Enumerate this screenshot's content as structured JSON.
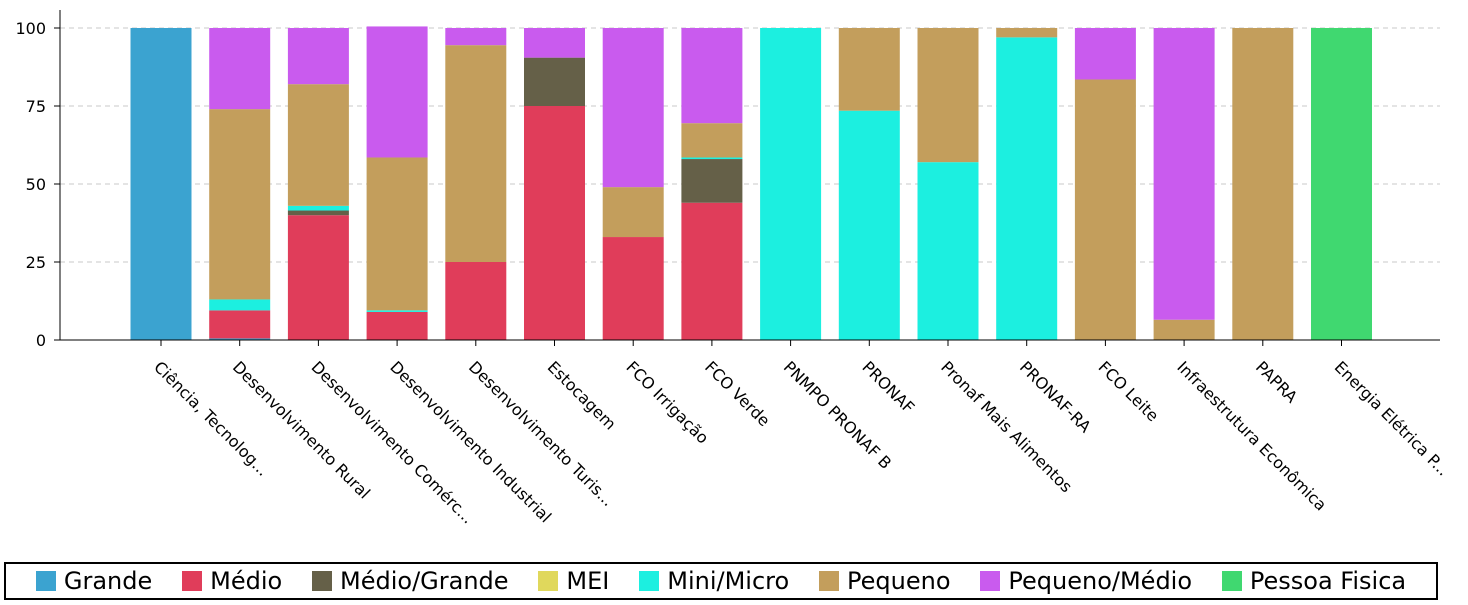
{
  "chart_data": {
    "type": "bar",
    "stacked": true,
    "categories": [
      "Ciência, Tecnolog...",
      "Desenvolvimento Rural",
      "Desenvolvimento Comérc...",
      "Desenvolvimento Industrial",
      "Desenvolvimento Turis...",
      "Estocagem",
      "FCO Irrigação",
      "FCO Verde",
      "PNMPO PRONAF B",
      "PRONAF",
      "Pronaf Mais Alimentos",
      "PRONAF-RA",
      "FCO Leite",
      "Infraestrutura Econômica",
      "PAPRA",
      "Energia Elétrica P..."
    ],
    "series": [
      {
        "name": "Grande",
        "color": "#3ba3d0",
        "values": [
          100,
          0.5,
          0,
          0,
          0,
          0,
          0,
          0,
          0,
          0,
          0,
          0,
          0,
          0,
          0,
          0
        ]
      },
      {
        "name": "Médio",
        "color": "#e03d5a",
        "values": [
          0,
          9,
          40,
          9,
          25,
          75,
          33,
          44,
          0,
          0,
          0,
          0,
          0,
          0,
          0,
          0
        ]
      },
      {
        "name": "Médio/Grande",
        "color": "#656048",
        "values": [
          0,
          0,
          1.5,
          0,
          0,
          15.5,
          0,
          14,
          0,
          0,
          0,
          0,
          0,
          0,
          0,
          0
        ]
      },
      {
        "name": "MEI",
        "color": "#e0d85c",
        "values": [
          0,
          0,
          0,
          0,
          0,
          0,
          0,
          0,
          0,
          0,
          0,
          0,
          0,
          0,
          0,
          0
        ]
      },
      {
        "name": "Mini/Micro",
        "color": "#1cefe0",
        "values": [
          0,
          3.5,
          1.5,
          0.5,
          0,
          0,
          0,
          0.5,
          100,
          73.5,
          57,
          97,
          0,
          0,
          0,
          0
        ]
      },
      {
        "name": "Pequeno",
        "color": "#c39e5c",
        "values": [
          0,
          61,
          39,
          49,
          69.5,
          0,
          16,
          11,
          0,
          26.5,
          43,
          3,
          83.5,
          6.5,
          100,
          0
        ]
      },
      {
        "name": "Pequeno/Médio",
        "color": "#c95bee",
        "values": [
          0,
          26,
          18,
          42,
          5.5,
          9.5,
          51,
          30.5,
          0,
          0,
          0,
          0,
          16.5,
          93.5,
          0,
          0
        ]
      },
      {
        "name": "Pessoa Fisica",
        "color": "#40d870",
        "values": [
          0,
          0,
          0,
          0,
          0,
          0,
          0,
          0,
          0,
          0,
          0,
          0,
          0,
          0,
          0,
          100
        ]
      }
    ],
    "yticks": [
      "0",
      "25",
      "50",
      "75",
      "100"
    ],
    "ylim": [
      0,
      100
    ],
    "grid": "horizontal dashed",
    "legend_position": "bottom"
  }
}
